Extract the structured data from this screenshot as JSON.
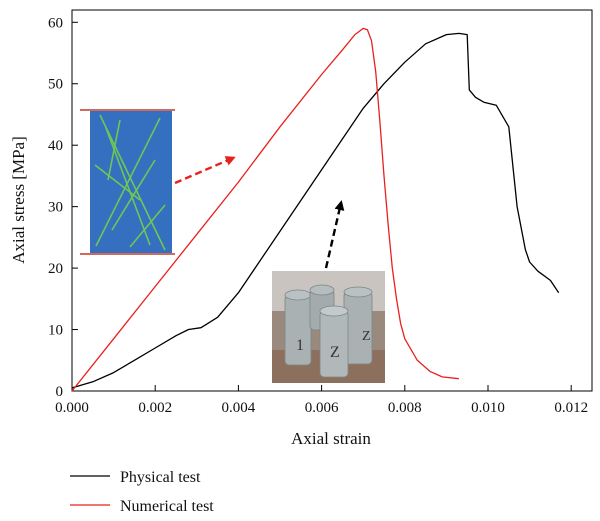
{
  "chart_data": {
    "type": "line",
    "xlabel": "Axial strain",
    "ylabel": "Axial stress [MPa]",
    "xlim": [
      0,
      0.0125
    ],
    "ylim": [
      0,
      62
    ],
    "x_ticks": [
      0,
      0.002,
      0.004,
      0.006,
      0.008,
      0.01,
      0.012
    ],
    "x_tick_labels": [
      "0.000",
      "0.002",
      "0.004",
      "0.006",
      "0.008",
      "0.010",
      "0.012"
    ],
    "y_ticks": [
      0,
      10,
      20,
      30,
      40,
      50,
      60
    ],
    "y_tick_labels": [
      "0",
      "10",
      "20",
      "30",
      "40",
      "50",
      "60"
    ],
    "grid": false,
    "legend_position": "bottom-left, below plot",
    "series": [
      {
        "name": "Physical test",
        "color": "#000000",
        "x": [
          0,
          0.0005,
          0.001,
          0.0015,
          0.002,
          0.0025,
          0.0028,
          0.0031,
          0.0035,
          0.004,
          0.0045,
          0.005,
          0.0055,
          0.006,
          0.0065,
          0.007,
          0.0075,
          0.008,
          0.0085,
          0.009,
          0.0093,
          0.0095,
          0.00955,
          0.0097,
          0.0099,
          0.0102,
          0.0105,
          0.0107,
          0.0109,
          0.011,
          0.0112,
          0.0115,
          0.0117
        ],
        "y": [
          0.5,
          1.5,
          3,
          5,
          7,
          9,
          10,
          10.3,
          12,
          16,
          21,
          26,
          31,
          36,
          41,
          46,
          50,
          53.5,
          56.5,
          58,
          58.2,
          58,
          49,
          47.8,
          47,
          46.5,
          43,
          30,
          23,
          21,
          19.5,
          18,
          16
        ]
      },
      {
        "name": "Numerical test",
        "color": "#e8201e",
        "x": [
          0,
          0.001,
          0.002,
          0.003,
          0.004,
          0.005,
          0.006,
          0.0065,
          0.0068,
          0.007,
          0.0071,
          0.0072,
          0.0073,
          0.0074,
          0.0075,
          0.0076,
          0.0077,
          0.0078,
          0.0079,
          0.008,
          0.0083,
          0.0086,
          0.0089,
          0.0093
        ],
        "y": [
          0,
          8.5,
          17,
          25.5,
          34,
          43,
          51.5,
          55.5,
          58,
          59,
          58.8,
          57,
          52,
          44,
          35,
          27,
          20,
          15,
          11,
          8.5,
          5,
          3.2,
          2.3,
          2
        ]
      }
    ]
  },
  "annotations": {
    "inset_numerical": {
      "description_icon": "numerical-specimen-icon"
    },
    "inset_physical": {
      "specimen_marks": [
        "1",
        "Z",
        "Z"
      ]
    },
    "arrows": [
      {
        "color": "#e8201e",
        "style": "dashed"
      },
      {
        "color": "#000000",
        "style": "dashed"
      }
    ]
  },
  "legend": {
    "items": [
      {
        "label": "Physical test",
        "color": "#000000"
      },
      {
        "label": "Numerical test",
        "color": "#e8201e"
      }
    ]
  }
}
